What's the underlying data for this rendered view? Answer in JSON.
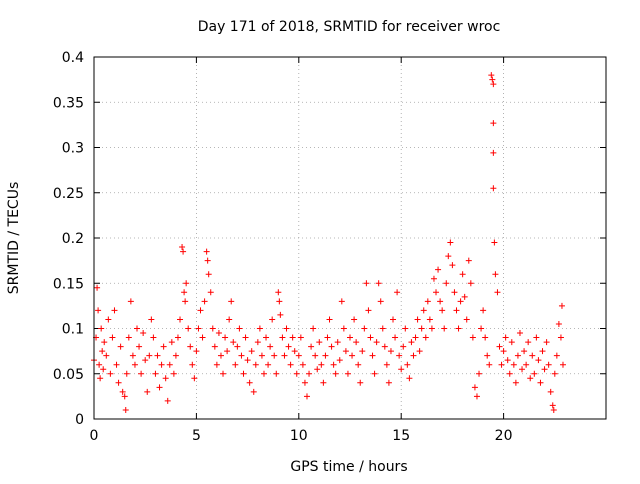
{
  "chart_data": {
    "type": "scatter",
    "title": "Day 171 of 2018, SRMTID for receiver wroc",
    "xlabel": "GPS time / hours",
    "ylabel": "SRMTID / TECUs",
    "xlim": [
      0,
      25
    ],
    "ylim": [
      0,
      0.4
    ],
    "xticks": [
      0,
      5,
      10,
      15,
      20
    ],
    "xtick_labels": [
      "0",
      "5",
      "10",
      "15",
      "20"
    ],
    "yticks": [
      0,
      0.05,
      0.1,
      0.15,
      0.2,
      0.25,
      0.3,
      0.35,
      0.4
    ],
    "ytick_labels": [
      "0",
      "0.05",
      "0.1",
      "0.15",
      "0.2",
      "0.25",
      "0.3",
      "0.35",
      "0.4"
    ],
    "grid": true,
    "marker": "+",
    "marker_color": "#ff0000",
    "series": [
      {
        "name": "SRMTID",
        "points": [
          [
            0.0,
            0.065
          ],
          [
            0.1,
            0.09
          ],
          [
            0.15,
            0.145
          ],
          [
            0.2,
            0.12
          ],
          [
            0.25,
            0.06
          ],
          [
            0.3,
            0.045
          ],
          [
            0.35,
            0.1
          ],
          [
            0.4,
            0.075
          ],
          [
            0.45,
            0.055
          ],
          [
            0.5,
            0.085
          ],
          [
            0.6,
            0.07
          ],
          [
            0.7,
            0.11
          ],
          [
            0.8,
            0.05
          ],
          [
            0.9,
            0.09
          ],
          [
            1.0,
            0.12
          ],
          [
            1.1,
            0.06
          ],
          [
            1.2,
            0.04
          ],
          [
            1.3,
            0.08
          ],
          [
            1.4,
            0.03
          ],
          [
            1.5,
            0.025
          ],
          [
            1.55,
            0.01
          ],
          [
            1.6,
            0.05
          ],
          [
            1.7,
            0.09
          ],
          [
            1.8,
            0.13
          ],
          [
            1.9,
            0.07
          ],
          [
            2.0,
            0.06
          ],
          [
            2.1,
            0.1
          ],
          [
            2.2,
            0.08
          ],
          [
            2.3,
            0.05
          ],
          [
            2.4,
            0.095
          ],
          [
            2.5,
            0.065
          ],
          [
            2.6,
            0.03
          ],
          [
            2.7,
            0.07
          ],
          [
            2.8,
            0.11
          ],
          [
            2.9,
            0.09
          ],
          [
            3.0,
            0.05
          ],
          [
            3.1,
            0.07
          ],
          [
            3.2,
            0.035
          ],
          [
            3.3,
            0.06
          ],
          [
            3.4,
            0.08
          ],
          [
            3.5,
            0.045
          ],
          [
            3.6,
            0.02
          ],
          [
            3.7,
            0.06
          ],
          [
            3.8,
            0.085
          ],
          [
            3.9,
            0.05
          ],
          [
            4.0,
            0.07
          ],
          [
            4.1,
            0.09
          ],
          [
            4.2,
            0.11
          ],
          [
            4.3,
            0.19
          ],
          [
            4.35,
            0.185
          ],
          [
            4.4,
            0.14
          ],
          [
            4.45,
            0.13
          ],
          [
            4.5,
            0.15
          ],
          [
            4.6,
            0.1
          ],
          [
            4.7,
            0.08
          ],
          [
            4.8,
            0.06
          ],
          [
            4.9,
            0.045
          ],
          [
            5.0,
            0.075
          ],
          [
            5.1,
            0.1
          ],
          [
            5.2,
            0.12
          ],
          [
            5.3,
            0.09
          ],
          [
            5.4,
            0.13
          ],
          [
            5.5,
            0.185
          ],
          [
            5.55,
            0.175
          ],
          [
            5.6,
            0.16
          ],
          [
            5.7,
            0.14
          ],
          [
            5.8,
            0.1
          ],
          [
            5.9,
            0.08
          ],
          [
            6.0,
            0.06
          ],
          [
            6.1,
            0.095
          ],
          [
            6.2,
            0.07
          ],
          [
            6.3,
            0.05
          ],
          [
            6.4,
            0.09
          ],
          [
            6.5,
            0.075
          ],
          [
            6.6,
            0.11
          ],
          [
            6.7,
            0.13
          ],
          [
            6.8,
            0.085
          ],
          [
            6.9,
            0.06
          ],
          [
            7.0,
            0.08
          ],
          [
            7.1,
            0.1
          ],
          [
            7.2,
            0.07
          ],
          [
            7.3,
            0.05
          ],
          [
            7.4,
            0.09
          ],
          [
            7.5,
            0.065
          ],
          [
            7.6,
            0.04
          ],
          [
            7.7,
            0.075
          ],
          [
            7.8,
            0.03
          ],
          [
            7.9,
            0.06
          ],
          [
            8.0,
            0.085
          ],
          [
            8.1,
            0.1
          ],
          [
            8.2,
            0.07
          ],
          [
            8.3,
            0.05
          ],
          [
            8.4,
            0.09
          ],
          [
            8.5,
            0.06
          ],
          [
            8.6,
            0.08
          ],
          [
            8.7,
            0.11
          ],
          [
            8.8,
            0.07
          ],
          [
            8.9,
            0.05
          ],
          [
            9.0,
            0.14
          ],
          [
            9.05,
            0.13
          ],
          [
            9.1,
            0.115
          ],
          [
            9.2,
            0.09
          ],
          [
            9.3,
            0.07
          ],
          [
            9.4,
            0.1
          ],
          [
            9.5,
            0.08
          ],
          [
            9.6,
            0.06
          ],
          [
            9.7,
            0.09
          ],
          [
            9.8,
            0.075
          ],
          [
            9.9,
            0.05
          ],
          [
            10.0,
            0.07
          ],
          [
            10.1,
            0.09
          ],
          [
            10.2,
            0.06
          ],
          [
            10.3,
            0.04
          ],
          [
            10.4,
            0.025
          ],
          [
            10.5,
            0.05
          ],
          [
            10.6,
            0.08
          ],
          [
            10.7,
            0.1
          ],
          [
            10.8,
            0.07
          ],
          [
            10.9,
            0.055
          ],
          [
            11.0,
            0.085
          ],
          [
            11.1,
            0.06
          ],
          [
            11.2,
            0.04
          ],
          [
            11.3,
            0.07
          ],
          [
            11.4,
            0.09
          ],
          [
            11.5,
            0.11
          ],
          [
            11.6,
            0.08
          ],
          [
            11.7,
            0.06
          ],
          [
            11.8,
            0.05
          ],
          [
            11.9,
            0.085
          ],
          [
            12.0,
            0.065
          ],
          [
            12.1,
            0.13
          ],
          [
            12.2,
            0.1
          ],
          [
            12.3,
            0.075
          ],
          [
            12.4,
            0.05
          ],
          [
            12.5,
            0.09
          ],
          [
            12.6,
            0.07
          ],
          [
            12.7,
            0.11
          ],
          [
            12.8,
            0.085
          ],
          [
            12.9,
            0.06
          ],
          [
            13.0,
            0.04
          ],
          [
            13.1,
            0.075
          ],
          [
            13.2,
            0.1
          ],
          [
            13.3,
            0.15
          ],
          [
            13.4,
            0.12
          ],
          [
            13.5,
            0.09
          ],
          [
            13.6,
            0.07
          ],
          [
            13.7,
            0.05
          ],
          [
            13.8,
            0.085
          ],
          [
            13.9,
            0.15
          ],
          [
            14.0,
            0.13
          ],
          [
            14.1,
            0.1
          ],
          [
            14.2,
            0.08
          ],
          [
            14.3,
            0.06
          ],
          [
            14.4,
            0.04
          ],
          [
            14.5,
            0.075
          ],
          [
            14.6,
            0.11
          ],
          [
            14.7,
            0.09
          ],
          [
            14.8,
            0.14
          ],
          [
            14.9,
            0.07
          ],
          [
            15.0,
            0.055
          ],
          [
            15.1,
            0.08
          ],
          [
            15.2,
            0.1
          ],
          [
            15.3,
            0.06
          ],
          [
            15.4,
            0.045
          ],
          [
            15.5,
            0.085
          ],
          [
            15.6,
            0.07
          ],
          [
            15.7,
            0.09
          ],
          [
            15.8,
            0.11
          ],
          [
            15.9,
            0.075
          ],
          [
            16.0,
            0.1
          ],
          [
            16.1,
            0.12
          ],
          [
            16.2,
            0.09
          ],
          [
            16.3,
            0.13
          ],
          [
            16.4,
            0.11
          ],
          [
            16.5,
            0.1
          ],
          [
            16.6,
            0.155
          ],
          [
            16.7,
            0.14
          ],
          [
            16.8,
            0.165
          ],
          [
            16.9,
            0.13
          ],
          [
            17.0,
            0.12
          ],
          [
            17.1,
            0.1
          ],
          [
            17.2,
            0.15
          ],
          [
            17.3,
            0.18
          ],
          [
            17.4,
            0.195
          ],
          [
            17.5,
            0.17
          ],
          [
            17.6,
            0.14
          ],
          [
            17.7,
            0.12
          ],
          [
            17.8,
            0.1
          ],
          [
            17.9,
            0.13
          ],
          [
            18.0,
            0.16
          ],
          [
            18.1,
            0.135
          ],
          [
            18.2,
            0.11
          ],
          [
            18.3,
            0.175
          ],
          [
            18.4,
            0.15
          ],
          [
            18.5,
            0.09
          ],
          [
            18.6,
            0.035
          ],
          [
            18.7,
            0.025
          ],
          [
            18.8,
            0.05
          ],
          [
            18.9,
            0.1
          ],
          [
            19.0,
            0.12
          ],
          [
            19.1,
            0.09
          ],
          [
            19.2,
            0.07
          ],
          [
            19.3,
            0.06
          ],
          [
            19.4,
            0.38
          ],
          [
            19.45,
            0.375
          ],
          [
            19.5,
            0.37
          ],
          [
            19.5,
            0.327
          ],
          [
            19.5,
            0.294
          ],
          [
            19.5,
            0.255
          ],
          [
            19.55,
            0.195
          ],
          [
            19.6,
            0.16
          ],
          [
            19.7,
            0.14
          ],
          [
            19.8,
            0.08
          ],
          [
            19.9,
            0.06
          ],
          [
            20.0,
            0.075
          ],
          [
            20.1,
            0.09
          ],
          [
            20.2,
            0.065
          ],
          [
            20.3,
            0.05
          ],
          [
            20.4,
            0.085
          ],
          [
            20.5,
            0.06
          ],
          [
            20.6,
            0.04
          ],
          [
            20.7,
            0.07
          ],
          [
            20.8,
            0.095
          ],
          [
            20.9,
            0.055
          ],
          [
            21.0,
            0.075
          ],
          [
            21.1,
            0.06
          ],
          [
            21.2,
            0.085
          ],
          [
            21.3,
            0.045
          ],
          [
            21.4,
            0.07
          ],
          [
            21.5,
            0.05
          ],
          [
            21.6,
            0.09
          ],
          [
            21.7,
            0.065
          ],
          [
            21.8,
            0.04
          ],
          [
            21.9,
            0.075
          ],
          [
            22.0,
            0.055
          ],
          [
            22.1,
            0.085
          ],
          [
            22.2,
            0.06
          ],
          [
            22.3,
            0.03
          ],
          [
            22.4,
            0.015
          ],
          [
            22.45,
            0.01
          ],
          [
            22.5,
            0.05
          ],
          [
            22.6,
            0.07
          ],
          [
            22.7,
            0.105
          ],
          [
            22.8,
            0.09
          ],
          [
            22.85,
            0.125
          ],
          [
            22.9,
            0.06
          ]
        ]
      }
    ]
  }
}
